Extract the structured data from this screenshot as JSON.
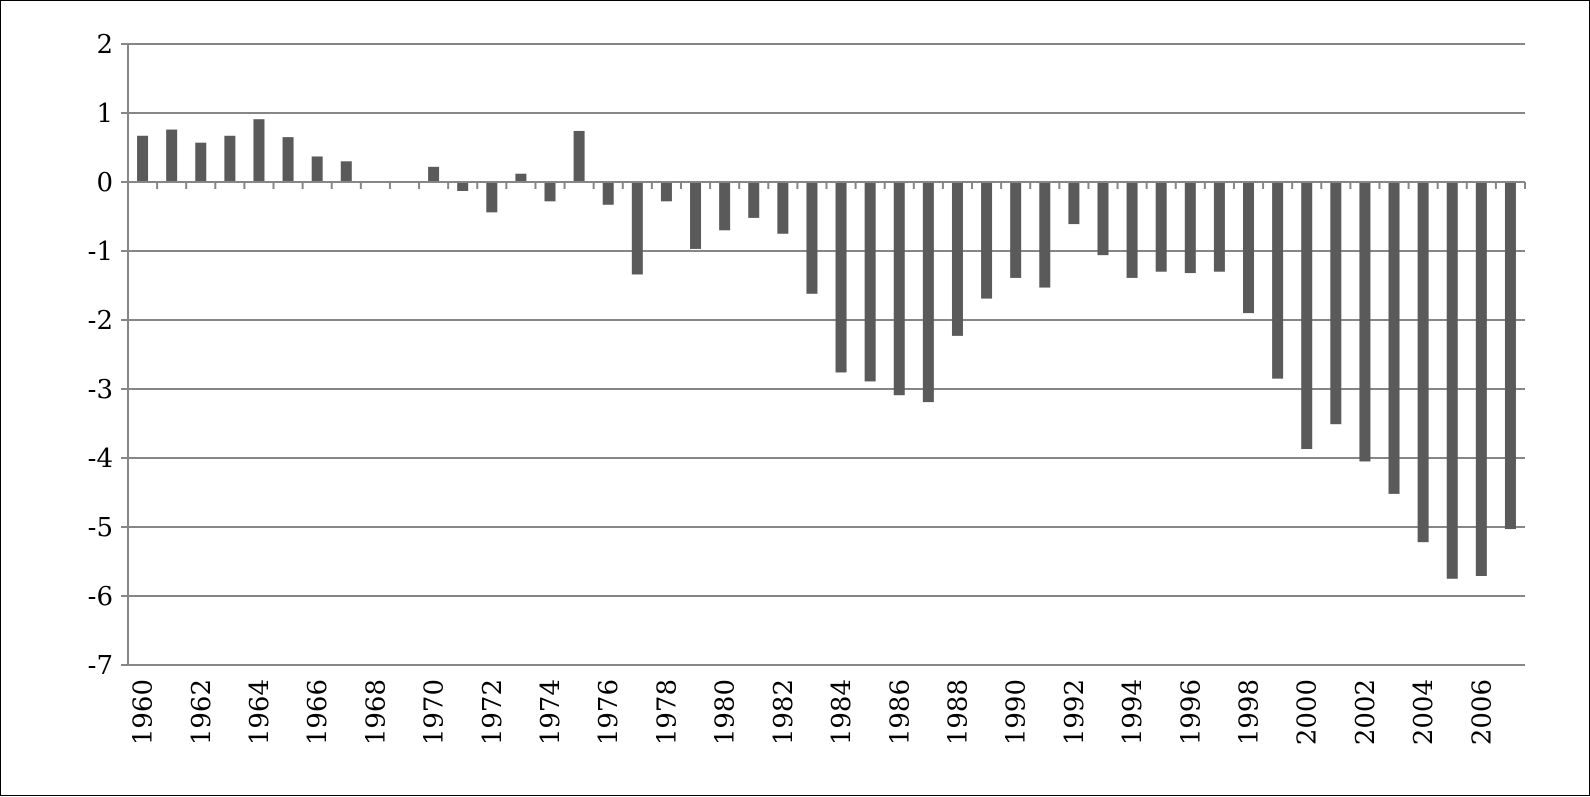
{
  "chart_data": {
    "type": "bar",
    "title": "",
    "xlabel": "",
    "ylabel": "",
    "ylim": [
      -7,
      2
    ],
    "yticks": [
      2,
      1,
      0,
      -1,
      -2,
      -3,
      -4,
      -5,
      -6,
      -7
    ],
    "grid": true,
    "legend": "none",
    "bar_color": "#5a5a5a",
    "categories": [
      "1960",
      "1961",
      "1962",
      "1963",
      "1964",
      "1965",
      "1966",
      "1967",
      "1968",
      "1969",
      "1970",
      "1971",
      "1972",
      "1973",
      "1974",
      "1975",
      "1976",
      "1977",
      "1978",
      "1979",
      "1980",
      "1981",
      "1982",
      "1983",
      "1984",
      "1985",
      "1986",
      "1987",
      "1988",
      "1989",
      "1990",
      "1991",
      "1992",
      "1993",
      "1994",
      "1995",
      "1996",
      "1997",
      "1998",
      "1999",
      "2000",
      "2001",
      "2002",
      "2003",
      "2004",
      "2005",
      "2006",
      "2007"
    ],
    "x_tick_labels": [
      "1960",
      "1962",
      "1964",
      "1966",
      "1968",
      "1970",
      "1972",
      "1974",
      "1976",
      "1978",
      "1980",
      "1982",
      "1984",
      "1986",
      "1988",
      "1990",
      "1992",
      "1994",
      "1996",
      "1998",
      "2000",
      "2002",
      "2004",
      "2006"
    ],
    "values": [
      0.67,
      0.76,
      0.57,
      0.67,
      0.91,
      0.65,
      0.37,
      0.3,
      0,
      0,
      0.22,
      -0.13,
      -0.44,
      0.12,
      -0.28,
      0.74,
      -0.33,
      -1.34,
      -0.28,
      -0.97,
      -0.7,
      -0.52,
      -0.75,
      -1.62,
      -2.76,
      -2.89,
      -3.09,
      -3.19,
      -2.23,
      -1.69,
      -1.39,
      -1.53,
      -0.61,
      -1.06,
      -1.39,
      -1.3,
      -1.32,
      -1.3,
      -1.9,
      -2.85,
      -3.87,
      -3.51,
      -4.05,
      -4.52,
      -5.22,
      -5.75,
      -5.71,
      -5.03
    ]
  }
}
